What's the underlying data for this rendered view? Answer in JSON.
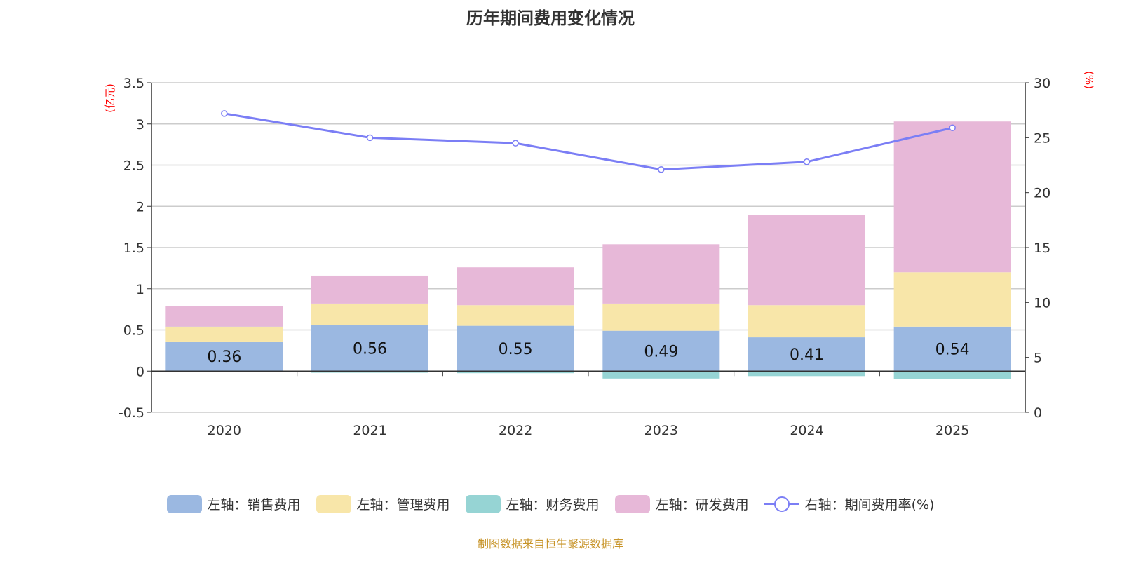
{
  "title": "历年期间费用变化情况",
  "source": "制图数据来自恒生聚源数据库",
  "chart_data": {
    "type": "bar",
    "stacked": true,
    "categories": [
      "2020",
      "2021",
      "2022",
      "2023",
      "2024",
      "2025"
    ],
    "left_axis": {
      "label": "(亿元)",
      "range": [
        -0.5,
        3.5
      ],
      "ticks": [
        "-0.5",
        "0",
        "0.5",
        "1",
        "1.5",
        "2",
        "2.5",
        "3",
        "3.5"
      ]
    },
    "right_axis": {
      "label": "(%)",
      "range": [
        0,
        30
      ],
      "ticks": [
        "0",
        "5",
        "10",
        "15",
        "20",
        "25",
        "30"
      ]
    },
    "grid": true,
    "legend_position": "bottom",
    "series": [
      {
        "name": "左轴：销售费用",
        "type": "bar",
        "axis": "left",
        "color": "#9bb8e1",
        "values": [
          0.36,
          0.56,
          0.55,
          0.49,
          0.41,
          0.54
        ],
        "labels": [
          "0.36",
          "0.56",
          "0.55",
          "0.49",
          "0.41",
          "0.54"
        ]
      },
      {
        "name": "左轴：管理费用",
        "type": "bar",
        "axis": "left",
        "color": "#f8e6a9",
        "values": [
          0.18,
          0.26,
          0.25,
          0.33,
          0.39,
          0.66
        ]
      },
      {
        "name": "左轴：财务费用",
        "type": "bar",
        "axis": "left",
        "color": "#96d4d4",
        "values": [
          0.0,
          -0.02,
          -0.025,
          -0.09,
          -0.06,
          -0.1
        ]
      },
      {
        "name": "左轴：研发费用",
        "type": "bar",
        "axis": "left",
        "color": "#e7b8d8",
        "values": [
          0.25,
          0.34,
          0.46,
          0.72,
          1.1,
          1.83
        ]
      },
      {
        "name": "右轴：期间费用率(%)",
        "type": "line",
        "axis": "right",
        "color": "#7b7ef5",
        "values": [
          27.2,
          25.0,
          24.5,
          22.1,
          22.8,
          25.9
        ]
      }
    ]
  }
}
